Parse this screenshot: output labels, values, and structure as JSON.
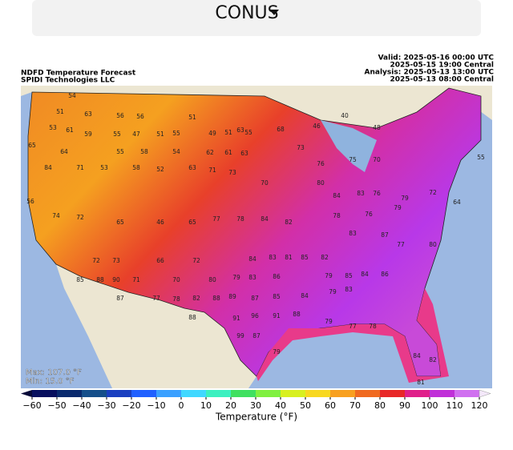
{
  "header": {
    "region": "CONUS"
  },
  "map": {
    "title": "NDFD Temperature Forecast",
    "credit": "SPIDI Technologies LLC",
    "valid_utc": "Valid: 2025-05-16 00:00 UTC",
    "valid_central": "2025-05-15 19:00 Central",
    "analysis_utc": "Analysis: 2025-05-13 13:00 UTC",
    "analysis_central": "2025-05-13 08:00 Central",
    "max": "Max: 107.0 °F",
    "min": "Min: 15.0 °F",
    "stations": [
      54,
      51,
      63,
      56,
      56,
      51,
      63,
      68,
      46,
      40,
      48,
      53,
      61,
      59,
      55,
      47,
      51,
      55,
      49,
      51,
      55,
      65,
      64,
      55,
      58,
      54,
      62,
      61,
      63,
      73,
      76,
      75,
      70,
      55,
      84,
      71,
      53,
      58,
      52,
      63,
      71,
      73,
      70,
      80,
      84,
      83,
      76,
      79,
      72,
      64,
      56,
      74,
      72,
      65,
      46,
      65,
      77,
      78,
      84,
      82,
      78,
      76,
      79,
      83,
      87,
      72,
      73,
      66,
      72,
      84,
      83,
      81,
      85,
      82,
      77,
      80,
      85,
      88,
      90,
      71,
      70,
      80,
      79,
      83,
      86,
      79,
      85,
      84,
      86,
      87,
      77,
      78,
      82,
      88,
      89,
      87,
      85,
      84,
      79,
      83,
      88,
      91,
      96,
      91,
      88,
      79,
      77,
      78,
      99,
      87,
      79,
      84,
      82,
      81
    ],
    "colorbar": {
      "label": "Temperature (°F)",
      "ticks": [
        {
          "value": -60,
          "label": "−60"
        },
        {
          "value": -50,
          "label": "−50"
        },
        {
          "value": -40,
          "label": "−40"
        },
        {
          "value": -30,
          "label": "−30"
        },
        {
          "value": -20,
          "label": "−20"
        },
        {
          "value": -10,
          "label": "−10"
        },
        0,
        10,
        20,
        30,
        40,
        50,
        60,
        70,
        80,
        90,
        100,
        110,
        120
      ],
      "lim": [
        -60,
        120
      ]
    }
  }
}
